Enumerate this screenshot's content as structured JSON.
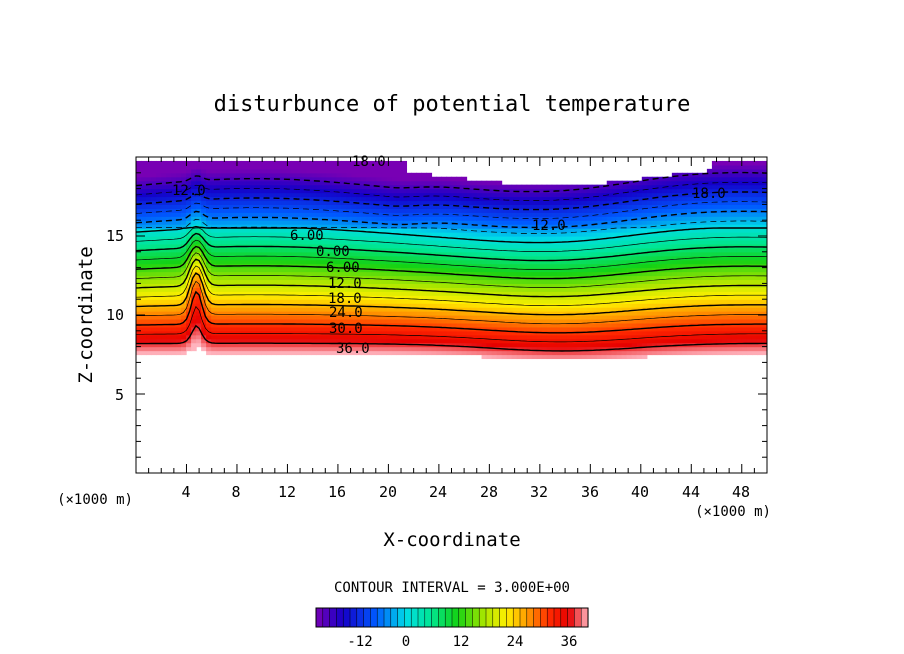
{
  "chart_data": {
    "type": "heatmap",
    "title": "disturbunce of potential temperature",
    "xlabel": "X-coordinate",
    "ylabel": "Z-coordinate",
    "x_unit": "(×1000 m)",
    "y_unit": "(×1000 m)",
    "xlim": [
      0,
      50
    ],
    "ylim": [
      0,
      20
    ],
    "x_ticks": [
      "4",
      "8",
      "12",
      "16",
      "20",
      "24",
      "28",
      "32",
      "36",
      "40",
      "44",
      "48"
    ],
    "y_ticks": [
      "5",
      "10",
      "15"
    ],
    "contour_interval_text": "CONTOUR INTERVAL = 3.000E+00",
    "contour_labels": [
      "18.0",
      "12.0",
      "6.00",
      "0.00",
      "6.00",
      "12.0",
      "18.0",
      "24.0",
      "30.0",
      "36.0",
      "12.0",
      "18.0"
    ],
    "colorbar": {
      "min": -21,
      "max": 39,
      "ticks": [
        "-12",
        "0",
        "12",
        "24",
        "36"
      ]
    }
  }
}
